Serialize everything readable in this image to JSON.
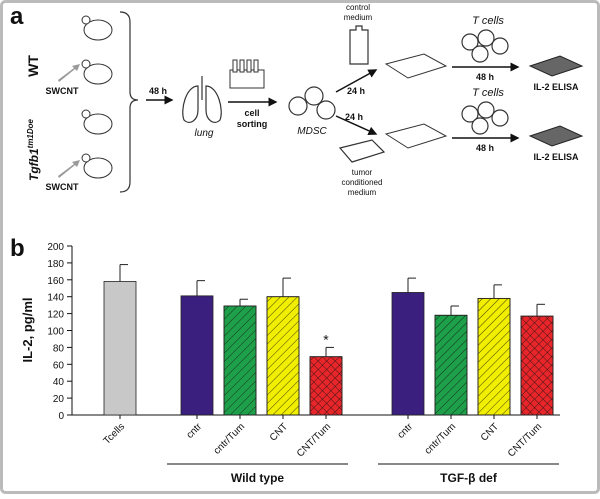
{
  "panel_a": {
    "label": "a",
    "wt": "WT",
    "ko": {
      "base": "Tgfb1",
      "sup": "tm1Doe"
    },
    "treatments": [
      "SWCNT",
      "SWCNT"
    ],
    "time1": "48 h",
    "organ": "lung",
    "sorting": [
      "cell",
      "sorting"
    ],
    "cells": "MDSC",
    "media": [
      {
        "lines": [
          "control",
          "medium"
        ],
        "time": "24 h"
      },
      {
        "lines": [
          "tumor",
          "conditioned",
          "medium"
        ],
        "time": "24 h"
      }
    ],
    "coculture": [
      {
        "cells": "T cells",
        "time": "48 h",
        "assay": "IL-2 ELISA"
      },
      {
        "cells": "T cells",
        "time": "48 h",
        "assay": "IL-2 ELISA"
      }
    ]
  },
  "chart_data": {
    "type": "bar",
    "panel_label": "b",
    "ylabel": "IL-2, pg/ml",
    "ylim": [
      0,
      200
    ],
    "yticks": [
      0,
      20,
      40,
      60,
      80,
      100,
      120,
      140,
      160,
      180,
      200
    ],
    "categories": [
      "Tcells"
    ],
    "values": [
      158
    ],
    "errors": [
      20
    ],
    "colors": [
      "#c8c8c8"
    ],
    "hatches": [
      "none"
    ],
    "groups": [
      {
        "name": "Wild type",
        "categories": [
          "cntr",
          "cntr/Tum",
          "CNT",
          "CNT/Tum"
        ],
        "values": [
          141,
          129,
          140,
          69
        ],
        "errors": [
          18,
          8,
          22,
          11
        ],
        "colors": [
          "#3b1f7e",
          "#1ea04a",
          "#f2ee00",
          "#e8262a"
        ],
        "hatches": [
          "none",
          "diagonal",
          "diagonal",
          "cross"
        ],
        "significance": [
          null,
          null,
          null,
          "*"
        ]
      },
      {
        "name": "TGF-β def",
        "categories": [
          "cntr",
          "cntr/Tum",
          "CNT",
          "CNT/Tum"
        ],
        "values": [
          145,
          118,
          138,
          117
        ],
        "errors": [
          17,
          11,
          16,
          14
        ],
        "colors": [
          "#3b1f7e",
          "#1ea04a",
          "#f2ee00",
          "#e8262a"
        ],
        "hatches": [
          "none",
          "diagonal",
          "diagonal",
          "cross"
        ]
      }
    ]
  }
}
